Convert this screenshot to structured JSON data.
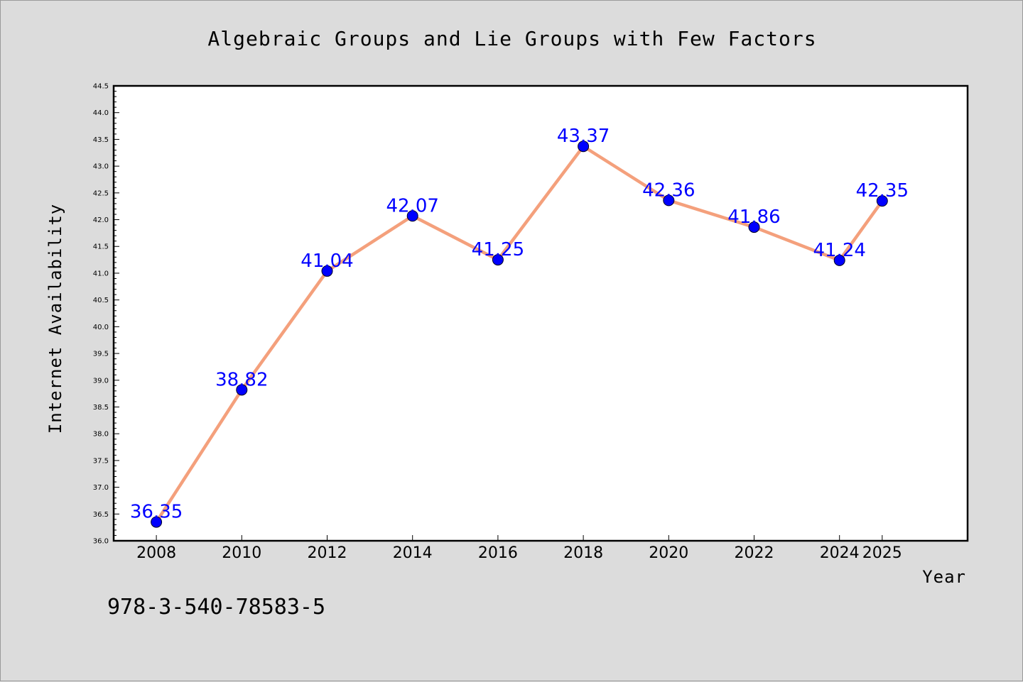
{
  "chart_data": {
    "type": "line",
    "title": "Algebraic Groups and Lie Groups with Few Factors",
    "xlabel": "Year",
    "ylabel": "Internet Availability",
    "x": [
      2008,
      2010,
      2012,
      2014,
      2016,
      2018,
      2020,
      2022,
      2024,
      2025
    ],
    "x_tick_labels": [
      "2008",
      "2010",
      "2012",
      "2014",
      "2016",
      "2018",
      "2020",
      "2022",
      "2024",
      "2025"
    ],
    "series": [
      {
        "values": [
          36.35,
          38.82,
          41.04,
          42.07,
          41.25,
          43.37,
          42.36,
          41.86,
          41.24,
          42.35
        ],
        "data_labels": [
          "36.35",
          "38.82",
          "41.04",
          "42.07",
          "41.25",
          "43.37",
          "42.36",
          "41.86",
          "41.24",
          "42.35"
        ],
        "line_color": "#f4a07c",
        "marker_color": "#0000ff"
      }
    ],
    "ylim": [
      36.0,
      44.5
    ],
    "y_ticks": [
      36.0,
      36.5,
      37.0,
      37.5,
      38.0,
      38.5,
      39.0,
      39.5,
      40.0,
      40.5,
      41.0,
      41.5,
      42.0,
      42.5,
      43.0,
      43.5,
      44.0,
      44.5
    ],
    "y_tick_labels": [
      "36.0",
      "36.5",
      "37.0",
      "37.5",
      "38.0",
      "38.5",
      "39.0",
      "39.5",
      "40.0",
      "40.5",
      "41.0",
      "41.5",
      "42.0",
      "42.5",
      "43.0",
      "43.5",
      "44.0",
      "44.5"
    ],
    "grid": false,
    "legend": "none",
    "label_color": "#0000ff"
  },
  "footer_text": "978-3-540-78583-5"
}
